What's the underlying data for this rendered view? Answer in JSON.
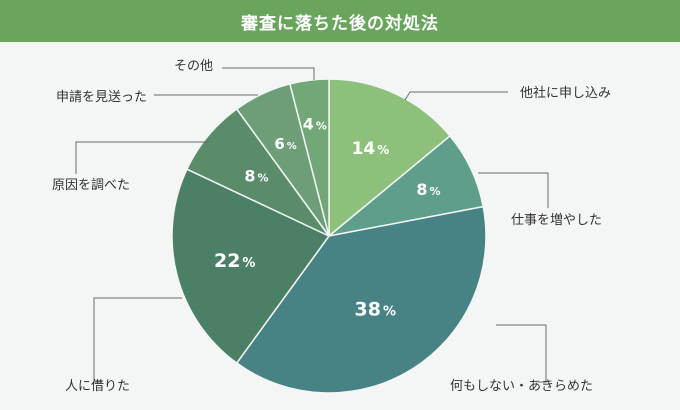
{
  "header": {
    "title": "審査に落ちた後の対処法"
  },
  "chart_data": {
    "type": "pie",
    "title": "審査に落ちた後の対処法",
    "categories": [
      "他社に申し込み",
      "仕事を増やした",
      "何もしない・あきらめた",
      "人に借りた",
      "原因を調べた",
      "申請を見送った",
      "その他"
    ],
    "values": [
      14,
      8,
      38,
      22,
      8,
      6,
      4
    ],
    "value_suffix": "%",
    "start": "top, clockwise",
    "colors": [
      "#8cc07b",
      "#5f9e8a",
      "#478384",
      "#4c8066",
      "#5a8c6b",
      "#6d9e78",
      "#72a877"
    ]
  }
}
